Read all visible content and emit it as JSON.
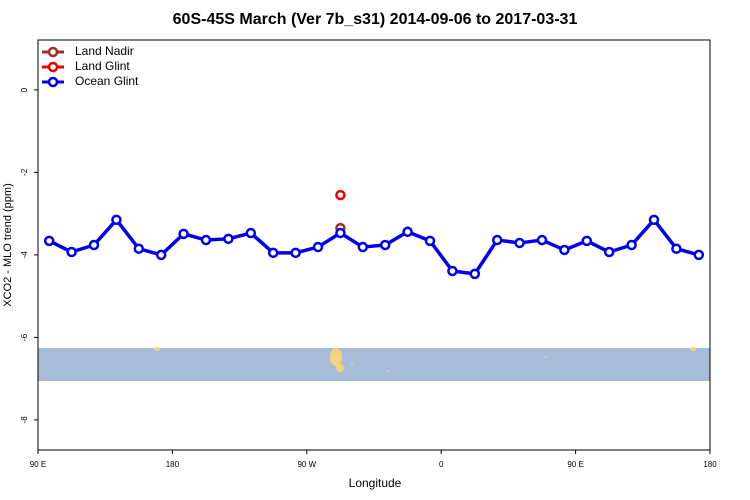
{
  "chart_data": {
    "type": "line",
    "title": "60S-45S March (Ver 7b_s31)   2014-09-06 to 2017-03-31",
    "x_label": "Longitude",
    "y_label": "XCO2 - MLO trend (ppm)",
    "xlim": [
      90,
      540
    ],
    "xticks": [
      {
        "value": 90,
        "label": "90 E"
      },
      180,
      {
        "value": 270,
        "label": "90 W"
      },
      {
        "value": 360,
        "label": "0"
      },
      {
        "value": 450,
        "label": "90 E"
      },
      {
        "value": 540,
        "label": "180"
      }
    ],
    "ylim": [
      -8.73,
      1.21
    ],
    "yticks": [
      -8,
      -6,
      -4,
      -2,
      0
    ],
    "legend": "top-left",
    "series": [
      {
        "name": "Land Nadir",
        "color": "#a52a2a",
        "x": [
          292.5
        ],
        "values": [
          -3.35
        ]
      },
      {
        "name": "Land Glint",
        "color": "#ee0000",
        "x": [
          292.5
        ],
        "values": [
          -2.55
        ]
      },
      {
        "name": "Ocean Glint",
        "color": "#0000ee",
        "x": [
          97.5,
          112.5,
          127.5,
          142.5,
          157.5,
          172.5,
          187.5,
          202.5,
          217.5,
          232.5,
          247.5,
          262.5,
          277.5,
          292.5,
          307.5,
          322.5,
          337.5,
          352.5,
          367.5,
          382.5,
          397.5,
          412.5,
          427.5,
          442.5,
          457.5,
          472.5,
          487.5,
          502.5,
          517.5,
          532.5
        ],
        "values": [
          -3.66,
          -3.93,
          -3.76,
          -3.15,
          -3.85,
          -4.0,
          -3.49,
          -3.64,
          -3.61,
          -3.47,
          -3.95,
          -3.95,
          -3.81,
          -3.47,
          -3.81,
          -3.76,
          -3.44,
          -3.66,
          -4.39,
          -4.46,
          -3.64,
          -3.71,
          -3.64,
          -3.88,
          -3.66,
          -3.93,
          -3.76,
          -3.15,
          -3.85,
          -4.0
        ]
      }
    ]
  }
}
